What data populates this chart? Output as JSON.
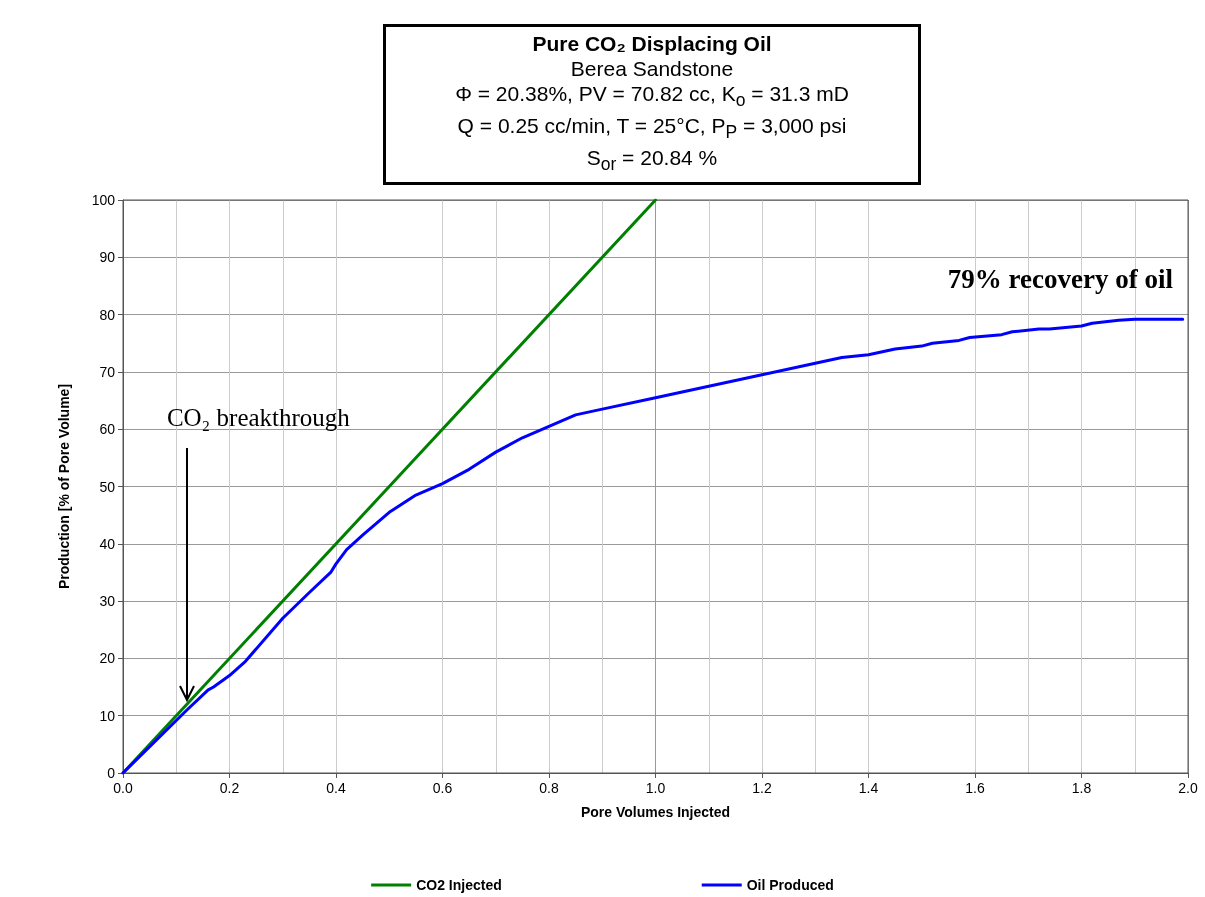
{
  "chart_data": {
    "type": "line",
    "title": "Pure CO₂ Displacing Oil",
    "subtitle": "Berea Sandstone\nΦ = 20.38%, PV = 70.82 cc, K$_{o}$ = 31.3 mD\nQ = 0.25 cc/min, T = 25°C, P$_{P}$ = 3,000 psi\nS$_{or}$ = 20.84 %",
    "xlabel": "Pore Volumes Injected",
    "ylabel": "Production [% of Pore Volume]",
    "annotations": [
      {
        "text": "CO₂ breakthrough",
        "x": 0.12,
        "y": 12
      },
      "79% recovery of oil"
    ],
    "xlim": [
      0,
      2
    ],
    "xticks": [
      {
        "value": 0,
        "label": "0.0"
      },
      0.2,
      0.4,
      0.6,
      0.8,
      {
        "value": 1,
        "label": "1.0"
      },
      1.2,
      1.4,
      1.6,
      1.8,
      {
        "value": 2,
        "label": "2.0"
      }
    ],
    "ylim": [
      0,
      100
    ],
    "yticks": [
      0,
      10,
      20,
      30,
      40,
      50,
      60,
      70,
      80,
      90,
      100
    ],
    "grid": true,
    "legend": "bottom",
    "marker": "none",
    "line_style": "solid",
    "series": [
      {
        "name": "CO2 Injected",
        "color": "#008000",
        "x": [
          0,
          0.5,
          1.0
        ],
        "values": [
          0,
          50,
          100
        ]
      },
      {
        "name": "Oil Produced",
        "color": "#0000ff",
        "x": [
          0,
          0.12,
          0.16,
          0.17,
          0.2,
          0.23,
          0.3,
          0.35,
          0.39,
          0.4,
          0.42,
          0.45,
          0.5,
          0.55,
          0.6,
          0.65,
          0.7,
          0.75,
          0.8,
          0.85,
          0.9,
          1.0,
          1.1,
          1.2,
          1.3,
          1.35,
          1.4,
          1.45,
          1.5,
          1.52,
          1.57,
          1.59,
          1.65,
          1.67,
          1.72,
          1.74,
          1.8,
          1.82,
          1.87,
          1.9,
          1.99
        ],
        "values": [
          0,
          11,
          14.5,
          15,
          17,
          19.5,
          27,
          31.5,
          35,
          36.5,
          39,
          41.5,
          45.5,
          48.5,
          50.5,
          53,
          56,
          58.5,
          60.5,
          62.5,
          63.5,
          65.5,
          67.5,
          69.5,
          71.5,
          72.5,
          73,
          74,
          74.5,
          75,
          75.5,
          76,
          76.5,
          77,
          77.5,
          77.5,
          78,
          78.5,
          79,
          79.2,
          79.2
        ]
      }
    ]
  }
}
